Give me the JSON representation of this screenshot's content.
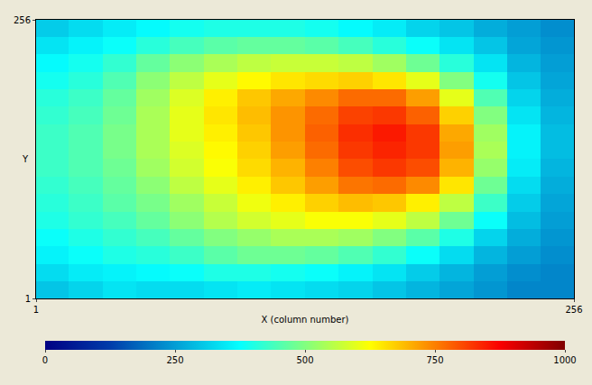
{
  "chart_data": {
    "type": "heatmap",
    "xlabel": "X (column number)",
    "ylabel": "Y",
    "x": [
      8.5,
      24.5,
      40.5,
      56.5,
      72.5,
      88.5,
      104.5,
      120.5,
      136.5,
      152.5,
      168.5,
      184.5,
      200.5,
      216.5,
      232.5,
      248.5
    ],
    "y": [
      8.5,
      24.5,
      40.5,
      56.5,
      72.5,
      88.5,
      104.5,
      120.5,
      136.5,
      152.5,
      168.5,
      184.5,
      200.5,
      216.5,
      232.5,
      248.5
    ],
    "z": [
      [
        300,
        320,
        340,
        330,
        330,
        340,
        350,
        340,
        330,
        320,
        300,
        280,
        260,
        240,
        220,
        220
      ],
      [
        330,
        350,
        360,
        370,
        380,
        400,
        400,
        390,
        380,
        360,
        340,
        310,
        280,
        250,
        230,
        220
      ],
      [
        360,
        380,
        400,
        410,
        430,
        460,
        480,
        480,
        470,
        450,
        420,
        380,
        330,
        280,
        250,
        230
      ],
      [
        380,
        400,
        420,
        440,
        470,
        500,
        520,
        540,
        540,
        530,
        500,
        460,
        400,
        320,
        270,
        240
      ],
      [
        400,
        420,
        440,
        470,
        510,
        550,
        580,
        600,
        620,
        620,
        600,
        560,
        480,
        380,
        290,
        250
      ],
      [
        410,
        430,
        460,
        490,
        530,
        570,
        610,
        640,
        670,
        690,
        680,
        640,
        560,
        430,
        310,
        260
      ],
      [
        420,
        440,
        470,
        510,
        560,
        600,
        640,
        680,
        720,
        760,
        770,
        740,
        650,
        480,
        330,
        270
      ],
      [
        430,
        450,
        480,
        530,
        580,
        620,
        660,
        700,
        750,
        800,
        820,
        800,
        700,
        520,
        350,
        280
      ],
      [
        430,
        450,
        490,
        540,
        590,
        630,
        670,
        720,
        770,
        820,
        840,
        820,
        720,
        540,
        360,
        290
      ],
      [
        430,
        450,
        490,
        540,
        600,
        640,
        680,
        730,
        780,
        830,
        850,
        820,
        710,
        530,
        360,
        290
      ],
      [
        420,
        440,
        480,
        540,
        600,
        650,
        690,
        730,
        770,
        810,
        820,
        780,
        670,
        500,
        340,
        280
      ],
      [
        410,
        430,
        470,
        530,
        590,
        640,
        680,
        710,
        740,
        770,
        770,
        720,
        600,
        450,
        320,
        270
      ],
      [
        390,
        410,
        450,
        510,
        560,
        600,
        630,
        650,
        660,
        670,
        650,
        600,
        500,
        390,
        300,
        260
      ],
      [
        370,
        390,
        420,
        470,
        510,
        540,
        560,
        570,
        570,
        560,
        530,
        480,
        410,
        340,
        280,
        250
      ],
      [
        340,
        360,
        380,
        410,
        440,
        460,
        470,
        470,
        460,
        440,
        410,
        380,
        340,
        300,
        260,
        240
      ],
      [
        310,
        330,
        350,
        370,
        390,
        400,
        400,
        400,
        390,
        370,
        350,
        320,
        300,
        270,
        250,
        230
      ]
    ],
    "xlim": [
      1,
      256
    ],
    "ylim": [
      1,
      256
    ],
    "xticks": [
      1,
      256
    ],
    "yticks": [
      1,
      256
    ],
    "colorbar": {
      "range": [
        0,
        1000
      ],
      "ticks": [
        0,
        250,
        500,
        750,
        1000
      ]
    },
    "grid": false
  }
}
